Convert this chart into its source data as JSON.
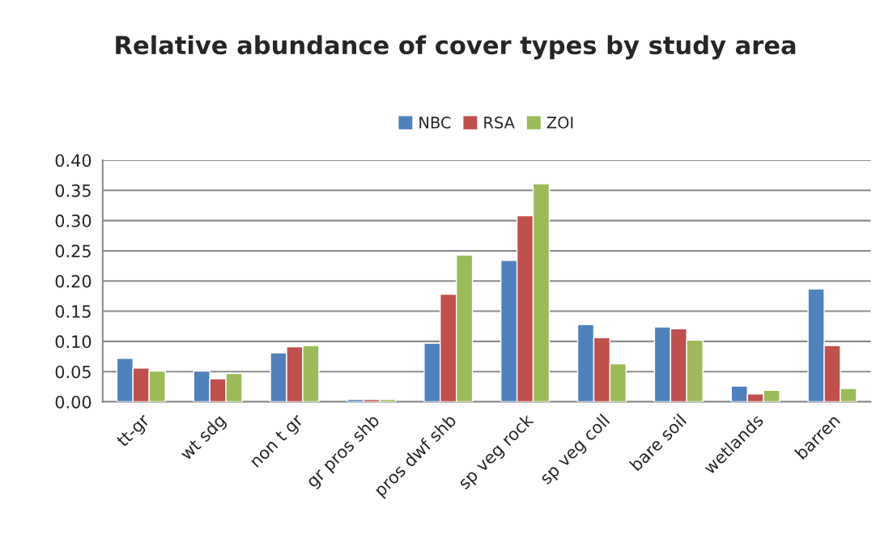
{
  "chart_data": {
    "type": "bar",
    "title": "Relative abundance of cover types by study area",
    "categories": [
      "tt-gr",
      "wt sdg",
      "non t gr",
      "gr pros shb",
      "pros dwf shb",
      "sp veg rock",
      "sp veg coll",
      "bare soil",
      "wetlands",
      "barren"
    ],
    "series": [
      {
        "name": "NBC",
        "color": "#4f81bd",
        "values": [
          0.072,
          0.051,
          0.081,
          0.004,
          0.097,
          0.234,
          0.128,
          0.124,
          0.026,
          0.187
        ]
      },
      {
        "name": "RSA",
        "color": "#c0504d",
        "values": [
          0.056,
          0.038,
          0.091,
          0.004,
          0.178,
          0.308,
          0.106,
          0.121,
          0.013,
          0.093
        ]
      },
      {
        "name": "ZOI",
        "color": "#9bbb59",
        "values": [
          0.051,
          0.047,
          0.093,
          0.004,
          0.243,
          0.361,
          0.063,
          0.102,
          0.019,
          0.022
        ]
      }
    ],
    "ylim": [
      0,
      0.4
    ],
    "yticks": [
      {
        "value": 0,
        "label": "0.00"
      },
      {
        "value": 0.05,
        "label": "0.05"
      },
      {
        "value": 0.1,
        "label": "0.10"
      },
      {
        "value": 0.15,
        "label": "0.15"
      },
      {
        "value": 0.2,
        "label": "0.20"
      },
      {
        "value": 0.25,
        "label": "0.25"
      },
      {
        "value": 0.3,
        "label": "0.30"
      },
      {
        "value": 0.35,
        "label": "0.35"
      },
      {
        "value": 0.4,
        "label": "0.40"
      }
    ],
    "grid": "y",
    "legend": "top"
  }
}
